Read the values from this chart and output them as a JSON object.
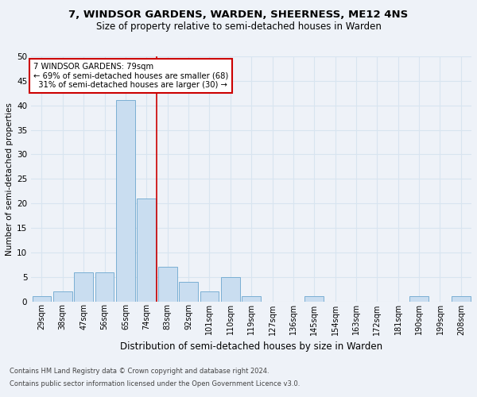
{
  "title": "7, WINDSOR GARDENS, WARDEN, SHEERNESS, ME12 4NS",
  "subtitle": "Size of property relative to semi-detached houses in Warden",
  "xlabel": "Distribution of semi-detached houses by size in Warden",
  "ylabel": "Number of semi-detached properties",
  "categories": [
    "29sqm",
    "38sqm",
    "47sqm",
    "56sqm",
    "65sqm",
    "74sqm",
    "83sqm",
    "92sqm",
    "101sqm",
    "110sqm",
    "119sqm",
    "127sqm",
    "136sqm",
    "145sqm",
    "154sqm",
    "163sqm",
    "172sqm",
    "181sqm",
    "190sqm",
    "199sqm",
    "208sqm"
  ],
  "values": [
    1,
    2,
    6,
    6,
    41,
    21,
    7,
    4,
    2,
    5,
    1,
    0,
    0,
    1,
    0,
    0,
    0,
    0,
    1,
    0,
    1
  ],
  "bar_color": "#c9ddf0",
  "bar_edge_color": "#7aafd4",
  "red_line_index": 5,
  "highlight_label": "7 WINDSOR GARDENS: 79sqm",
  "pct_smaller": 69,
  "count_smaller": 68,
  "pct_larger": 31,
  "count_larger": 30,
  "ylim": [
    0,
    50
  ],
  "yticks": [
    0,
    5,
    10,
    15,
    20,
    25,
    30,
    35,
    40,
    45,
    50
  ],
  "grid_color": "#d8e4f0",
  "bg_color": "#eef2f8",
  "annotation_box_color": "#ffffff",
  "annotation_box_edge": "#cc0000",
  "red_line_color": "#cc0000",
  "title_fontsize": 9.5,
  "subtitle_fontsize": 8.5,
  "ylabel_fontsize": 7.5,
  "xlabel_fontsize": 8.5,
  "footnote1": "Contains HM Land Registry data © Crown copyright and database right 2024.",
  "footnote2": "Contains public sector information licensed under the Open Government Licence v3.0."
}
